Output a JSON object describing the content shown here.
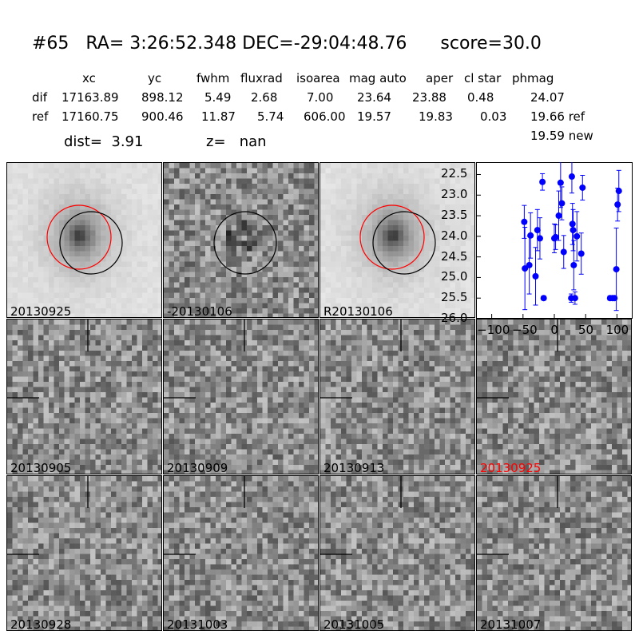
{
  "header": {
    "title": "#65   RA= 3:26:52.348 DEC=-29:04:48.76      score=30.0",
    "columns": [
      "xc",
      "yc",
      "fwhm",
      "fluxrad",
      "isoarea",
      "mag auto",
      "aper",
      "cl star",
      "phmag"
    ],
    "rows": [
      {
        "label": "dif",
        "values": [
          "17163.89",
          "898.12",
          "5.49",
          "2.68",
          "7.00",
          "23.64",
          "23.88",
          "0.48",
          "24.07"
        ]
      },
      {
        "label": "ref",
        "values": [
          "17160.75",
          "900.46",
          "11.87",
          "5.74",
          "606.00",
          "19.57",
          "19.83",
          "0.03",
          "19.66 ref"
        ]
      }
    ],
    "phmag_new": "19.59 new",
    "dist": "dist=  3.91",
    "z": "z=   nan"
  },
  "panels": [
    {
      "label": "20130925",
      "type": "galaxy",
      "circles": [
        "red",
        "black"
      ]
    },
    {
      "label": "-20130106",
      "type": "diff",
      "circles": [
        "black"
      ]
    },
    {
      "label": "R20130106",
      "type": "galaxy",
      "circles": [
        "red",
        "black"
      ]
    },
    {
      "label": "20130905",
      "type": "noise",
      "crosshair": true
    },
    {
      "label": "20130909",
      "type": "noise",
      "crosshair": true
    },
    {
      "label": "20130913",
      "type": "noise",
      "crosshair": true
    },
    {
      "label": "20130925",
      "type": "noise",
      "crosshair": true,
      "highlight": "#ff0000"
    },
    {
      "label": "20130928",
      "type": "noise",
      "crosshair": true
    },
    {
      "label": "20131003",
      "type": "noise",
      "crosshair": true
    },
    {
      "label": "20131005",
      "type": "noise",
      "crosshair": true
    },
    {
      "label": "20131007",
      "type": "noise",
      "crosshair": true
    }
  ],
  "chart_data": {
    "type": "scatter",
    "xlim": [
      -125,
      125
    ],
    "ylim": [
      26.0,
      22.2
    ],
    "y_inverted": true,
    "x_ticks": [
      "−100",
      "−50",
      "0",
      "50",
      "100"
    ],
    "y_ticks": [
      "22.5",
      "23.0",
      "23.5",
      "24.0",
      "24.5",
      "25.0",
      "25.5",
      "26.0"
    ],
    "color": "#0000ff",
    "points": [
      {
        "x": -48,
        "y": 23.65,
        "err": 0.4
      },
      {
        "x": -47,
        "y": 24.78,
        "err": 1.0
      },
      {
        "x": -40,
        "y": 24.7,
        "err": 0.7
      },
      {
        "x": -38,
        "y": 23.98,
        "err": 0.55
      },
      {
        "x": -30,
        "y": 24.97,
        "err": 0.7
      },
      {
        "x": -27,
        "y": 23.85,
        "err": 0.5
      },
      {
        "x": -23,
        "y": 24.05,
        "err": 0.5
      },
      {
        "x": -19,
        "y": 22.68,
        "err": 0.2
      },
      {
        "x": -17,
        "y": 25.5,
        "err": 0.05
      },
      {
        "x": 0,
        "y": 24.05,
        "err": 0.35
      },
      {
        "x": 2,
        "y": 24.02,
        "err": 0.3
      },
      {
        "x": 7,
        "y": 23.5,
        "err": 0.6
      },
      {
        "x": 10,
        "y": 22.7,
        "err": 0.6
      },
      {
        "x": 12,
        "y": 23.2,
        "err": 0.4
      },
      {
        "x": 15,
        "y": 24.38,
        "err": 0.4
      },
      {
        "x": 27,
        "y": 25.5,
        "err": 0.1
      },
      {
        "x": 28,
        "y": 22.55,
        "err": 0.4
      },
      {
        "x": 29,
        "y": 23.7,
        "err": 0.5
      },
      {
        "x": 30,
        "y": 23.85,
        "err": 0.5
      },
      {
        "x": 31,
        "y": 24.7,
        "err": 0.6
      },
      {
        "x": 33,
        "y": 25.5,
        "err": 0.15
      },
      {
        "x": 36,
        "y": 24.0,
        "err": 0.6
      },
      {
        "x": 43,
        "y": 24.42,
        "err": 0.5
      },
      {
        "x": 45,
        "y": 22.82,
        "err": 0.3
      },
      {
        "x": 89,
        "y": 25.5,
        "err": 0.05
      },
      {
        "x": 93,
        "y": 25.5,
        "err": 0.05
      },
      {
        "x": 96,
        "y": 25.5,
        "err": 0.05
      },
      {
        "x": 99,
        "y": 24.8,
        "err": 1.0
      },
      {
        "x": 101,
        "y": 23.23,
        "err": 0.4
      },
      {
        "x": 103,
        "y": 22.9,
        "err": 0.5
      }
    ]
  }
}
